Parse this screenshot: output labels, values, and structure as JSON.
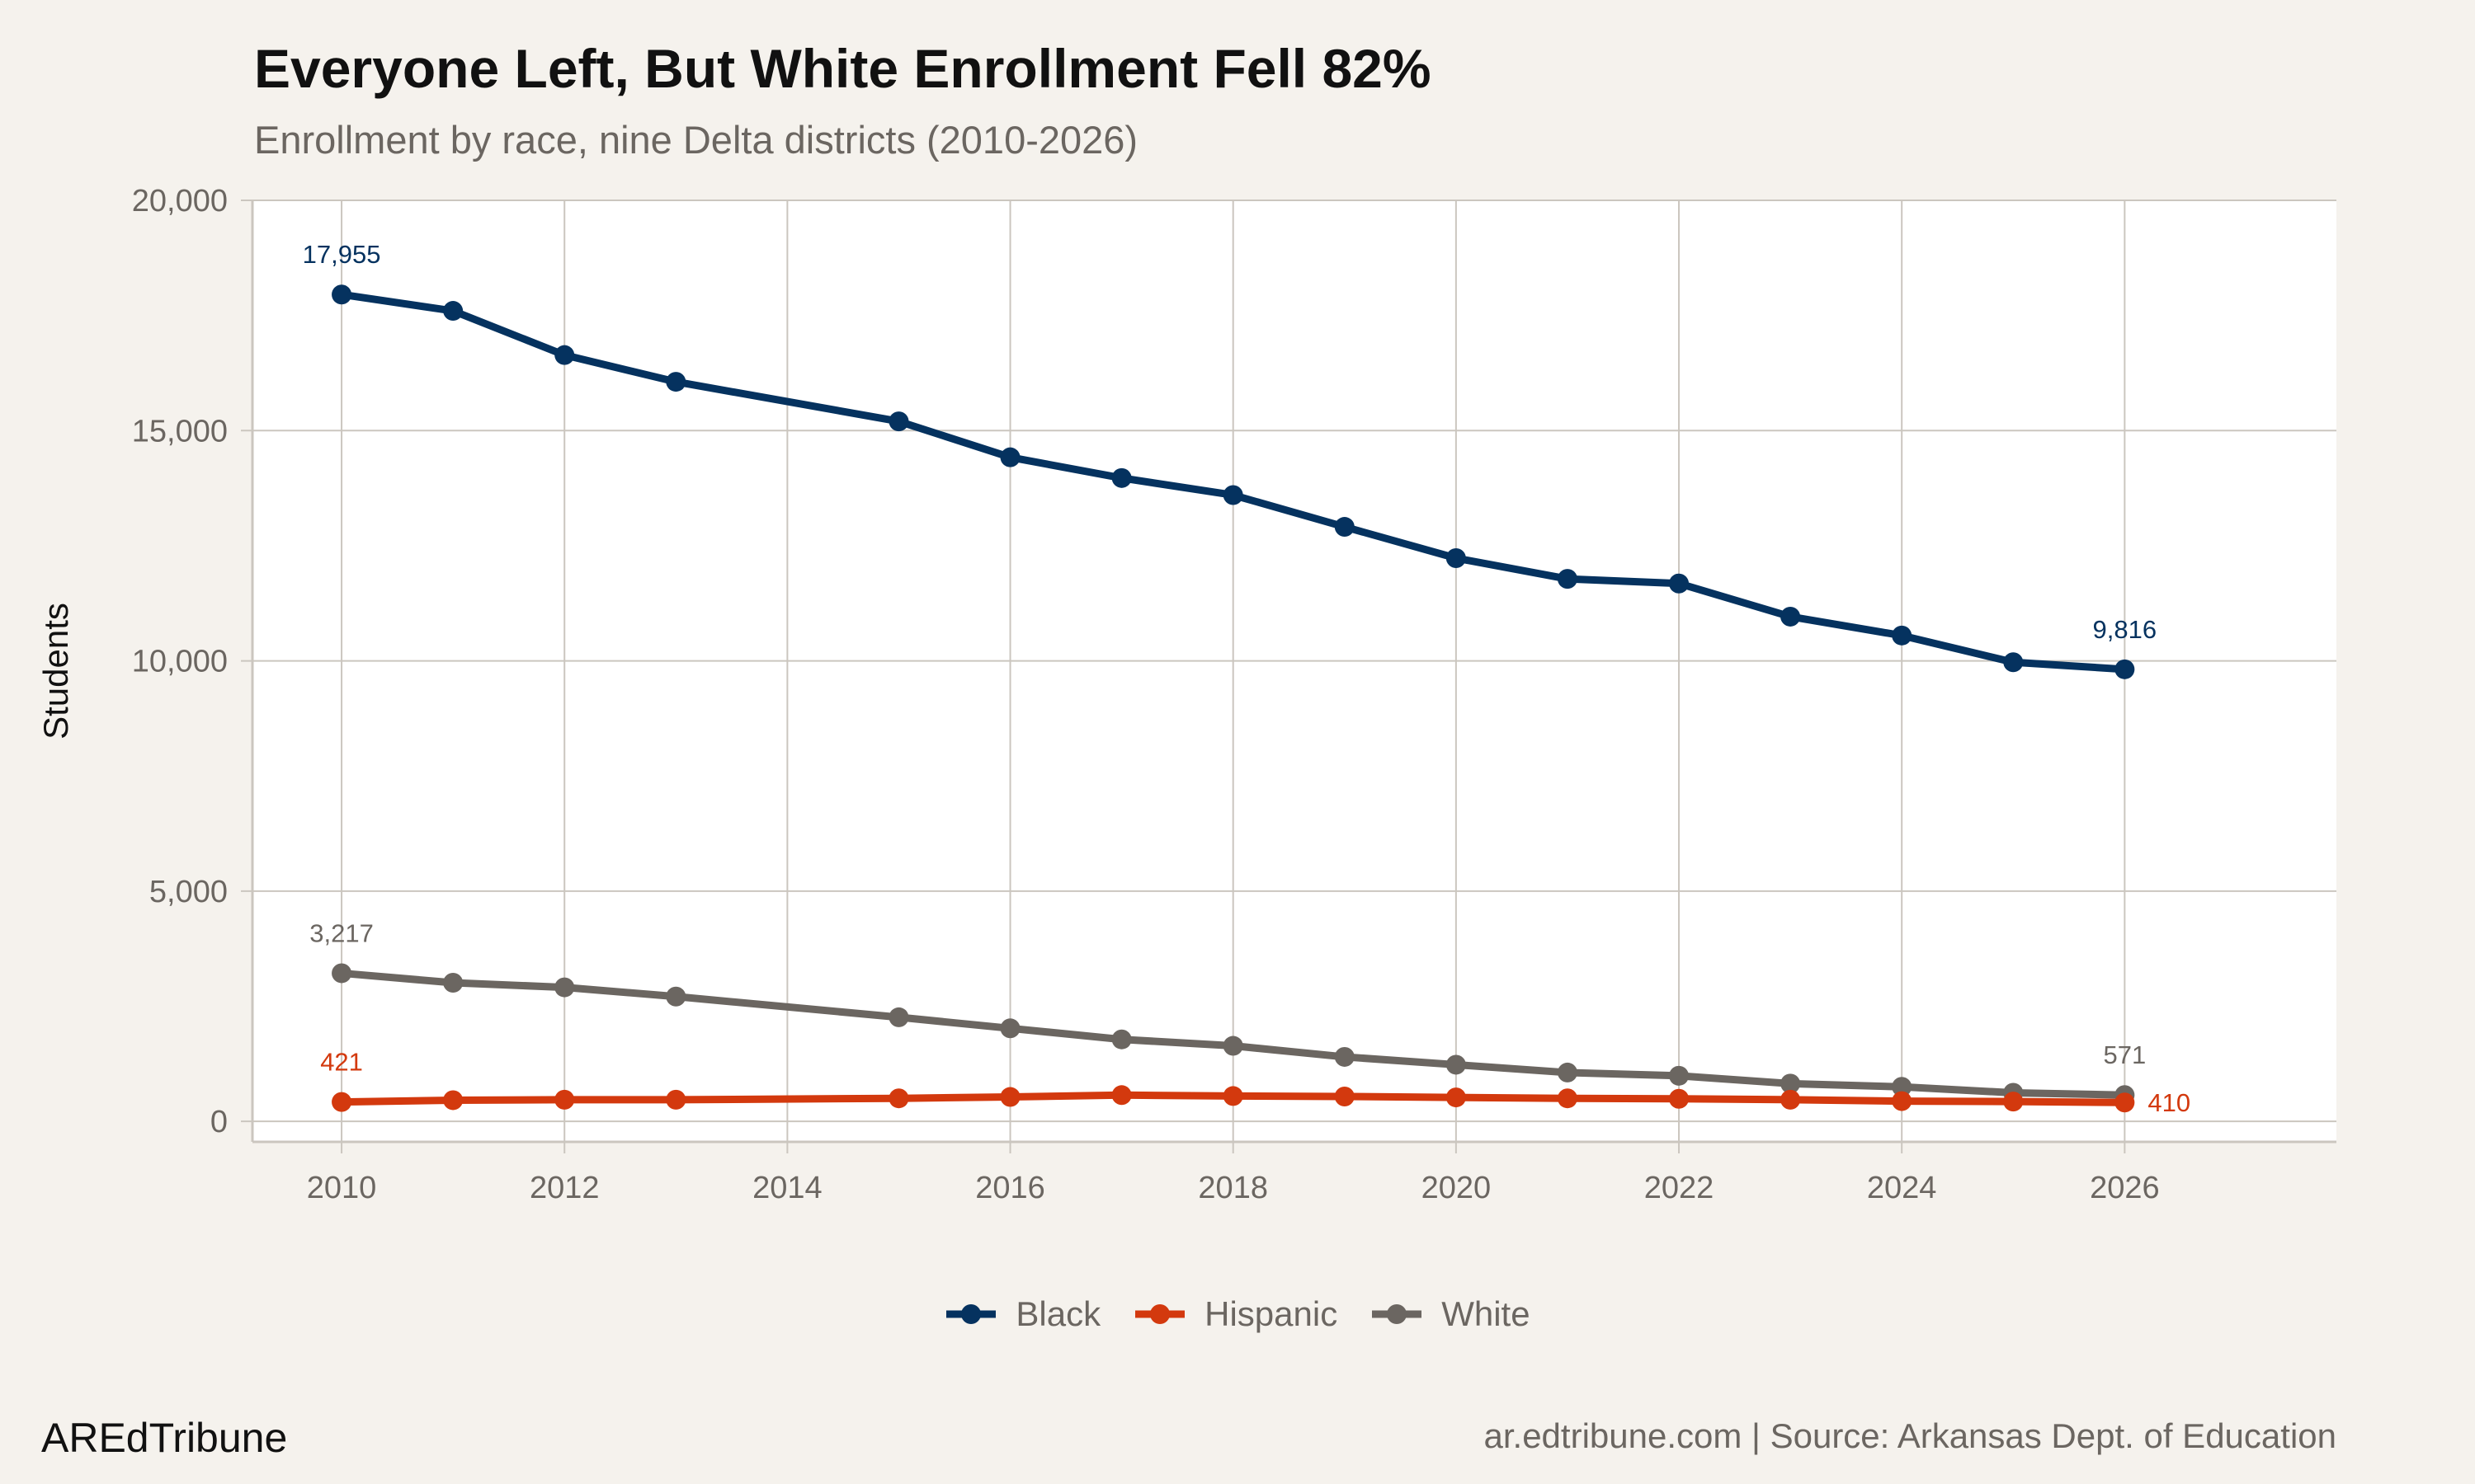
{
  "chart_data": {
    "type": "line",
    "title": "Everyone Left, But White Enrollment Fell 82%",
    "subtitle": "Enrollment by race, nine Delta districts (2010-2026)",
    "xlabel": "",
    "ylabel": "Students",
    "xlim": [
      2009.2,
      2027.9
    ],
    "ylim": [
      -445,
      20000
    ],
    "x_ticks": [
      2010,
      2012,
      2014,
      2016,
      2018,
      2020,
      2022,
      2024,
      2026
    ],
    "y_ticks": [
      0,
      5000,
      10000,
      15000,
      20000
    ],
    "y_tick_labels": [
      "0",
      "5,000",
      "10,000",
      "15,000",
      "20,000"
    ],
    "grid": true,
    "legend_position": "bottom",
    "x": [
      2010,
      2011,
      2012,
      2013,
      2015,
      2016,
      2017,
      2018,
      2019,
      2020,
      2021,
      2022,
      2023,
      2024,
      2025,
      2026
    ],
    "series": [
      {
        "name": "Black",
        "color": "#05325f",
        "values": [
          17955,
          17600,
          16640,
          16060,
          15200,
          14420,
          13970,
          13600,
          12910,
          12230,
          11780,
          11680,
          10960,
          10550,
          9970,
          9816
        ],
        "labels": [
          "17,955",
          "9,816"
        ]
      },
      {
        "name": "Hispanic",
        "color": "#d3390e",
        "values": [
          421,
          460,
          470,
          470,
          500,
          530,
          570,
          550,
          540,
          520,
          500,
          490,
          470,
          440,
          430,
          410
        ],
        "labels": [
          "421",
          "410"
        ]
      },
      {
        "name": "White",
        "color": "#6b6661",
        "values": [
          3217,
          3010,
          2910,
          2710,
          2260,
          2020,
          1780,
          1640,
          1400,
          1230,
          1060,
          990,
          820,
          750,
          620,
          571
        ],
        "labels": [
          "3,217",
          "571"
        ]
      }
    ]
  },
  "footer": {
    "brand": "AREdTribune",
    "source": "ar.edtribune.com | Source: Arkansas Dept. of Education"
  }
}
